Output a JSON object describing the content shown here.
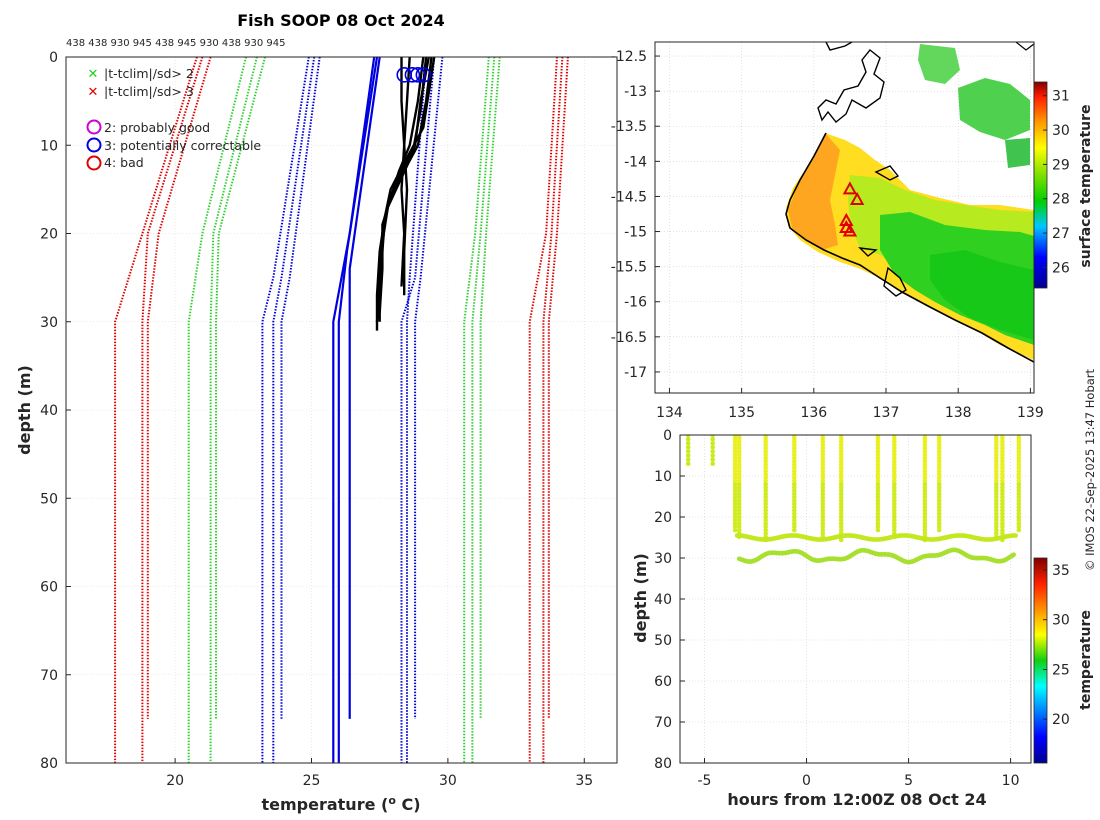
{
  "chart_data": [
    {
      "type": "line",
      "panel": "profiles",
      "title": "Fish SOOP 08 Oct 2024",
      "xlabel": "temperature (",
      "xlabel_sup": "o",
      "xlabel_end": " C)",
      "ylabel": "depth (m)",
      "xlim": [
        16,
        36.2
      ],
      "ylim": [
        80,
        0
      ],
      "x_ticks": [
        20,
        25,
        30,
        35
      ],
      "y_ticks": [
        0,
        10,
        20,
        30,
        40,
        50,
        60,
        70,
        80
      ],
      "top_tick_labels": "438 438 930 945 438 945 930 438 930 945",
      "legend": [
        {
          "marker": "x",
          "color": "#1fd01f",
          "label": "|t-tclim|/sd> 2"
        },
        {
          "marker": "x",
          "color": "#e00000",
          "label": "|t-tclim|/sd> 3"
        },
        {
          "marker": "o",
          "color": "#d000d0",
          "label": "2: probably good"
        },
        {
          "marker": "o",
          "color": "#0000e0",
          "label": "3: potentially correctable"
        },
        {
          "marker": "o",
          "color": "#e00000",
          "label": "4: bad"
        }
      ],
      "climatology_bands": [
        {
          "name": "-3sd",
          "color": "#e00000",
          "curves": [
            [
              [
                20.8,
                0
              ],
              [
                18.8,
                20
              ],
              [
                17.8,
                30
              ],
              [
                17.8,
                80
              ]
            ],
            [
              [
                21.0,
                0
              ],
              [
                19.0,
                20
              ],
              [
                18.8,
                30
              ],
              [
                18.8,
                80
              ]
            ],
            [
              [
                21.3,
                0
              ],
              [
                19.4,
                20
              ],
              [
                19.0,
                30
              ],
              [
                19.0,
                75
              ]
            ]
          ]
        },
        {
          "name": "-2sd",
          "color": "#30d030",
          "curves": [
            [
              [
                22.6,
                0
              ],
              [
                21.0,
                20
              ],
              [
                20.5,
                30
              ],
              [
                20.5,
                80
              ]
            ],
            [
              [
                23.0,
                0
              ],
              [
                21.4,
                20
              ],
              [
                21.3,
                30
              ],
              [
                21.3,
                80
              ]
            ],
            [
              [
                23.3,
                0
              ],
              [
                21.6,
                20
              ],
              [
                21.5,
                30
              ],
              [
                21.5,
                75
              ]
            ]
          ]
        },
        {
          "name": "mean",
          "color": "#0000e0",
          "curves": [
            [
              [
                24.9,
                0
              ],
              [
                23.6,
                25
              ],
              [
                23.2,
                30
              ],
              [
                23.2,
                80
              ]
            ],
            [
              [
                25.1,
                0
              ],
              [
                23.9,
                25
              ],
              [
                23.6,
                30
              ],
              [
                23.6,
                80
              ]
            ],
            [
              [
                25.3,
                0
              ],
              [
                24.2,
                25
              ],
              [
                23.9,
                30
              ],
              [
                23.9,
                75
              ]
            ]
          ]
        },
        {
          "name": "mean-right",
          "color": "#0000e0",
          "curves": [
            [
              [
                29.5,
                0
              ],
              [
                28.8,
                25
              ],
              [
                28.3,
                30
              ],
              [
                28.3,
                80
              ]
            ],
            [
              [
                29.2,
                0
              ],
              [
                28.6,
                25
              ],
              [
                28.5,
                30
              ],
              [
                28.5,
                80
              ]
            ],
            [
              [
                29.8,
                0
              ],
              [
                29.0,
                25
              ],
              [
                28.8,
                30
              ],
              [
                28.8,
                75
              ]
            ]
          ]
        },
        {
          "name": "+2sd",
          "color": "#30d030",
          "curves": [
            [
              [
                31.5,
                0
              ],
              [
                31.0,
                20
              ],
              [
                30.6,
                30
              ],
              [
                30.6,
                80
              ]
            ],
            [
              [
                31.7,
                0
              ],
              [
                31.2,
                20
              ],
              [
                30.9,
                30
              ],
              [
                30.9,
                80
              ]
            ],
            [
              [
                31.9,
                0
              ],
              [
                31.4,
                20
              ],
              [
                31.2,
                30
              ],
              [
                31.2,
                75
              ]
            ]
          ]
        },
        {
          "name": "+3sd",
          "color": "#e00000",
          "curves": [
            [
              [
                34.0,
                0
              ],
              [
                33.6,
                20
              ],
              [
                33.0,
                30
              ],
              [
                33.0,
                80
              ]
            ],
            [
              [
                34.2,
                0
              ],
              [
                33.8,
                20
              ],
              [
                33.5,
                30
              ],
              [
                33.5,
                80
              ]
            ],
            [
              [
                34.4,
                0
              ],
              [
                34.0,
                20
              ],
              [
                33.7,
                30
              ],
              [
                33.7,
                75
              ]
            ]
          ]
        }
      ],
      "model_profiles": {
        "color": "#0000e0",
        "curves": [
          [
            [
              27.3,
              0
            ],
            [
              26.4,
              20
            ],
            [
              25.8,
              30
            ],
            [
              25.8,
              80
            ]
          ],
          [
            [
              27.4,
              0
            ],
            [
              26.3,
              22
            ],
            [
              26.0,
              30
            ],
            [
              26.0,
              80
            ]
          ],
          [
            [
              27.5,
              0
            ],
            [
              26.4,
              24
            ],
            [
              26.4,
              30
            ],
            [
              26.4,
              75
            ]
          ]
        ]
      },
      "observed_profiles": {
        "color": "#000000",
        "curves": [
          [
            [
              28.3,
              0
            ],
            [
              28.3,
              5
            ],
            [
              28.4,
              10
            ],
            [
              28.3,
              15
            ],
            [
              28.4,
              20
            ],
            [
              28.3,
              26
            ]
          ],
          [
            [
              28.6,
              0
            ],
            [
              28.5,
              5
            ],
            [
              28.4,
              10
            ],
            [
              28.5,
              15
            ],
            [
              28.4,
              22
            ],
            [
              28.4,
              27
            ]
          ],
          [
            [
              29.4,
              0
            ],
            [
              29.2,
              5
            ],
            [
              28.9,
              10
            ],
            [
              28.2,
              14
            ],
            [
              27.8,
              17
            ],
            [
              27.6,
              20
            ],
            [
              27.5,
              25
            ],
            [
              27.5,
              30
            ]
          ],
          [
            [
              29.3,
              0
            ],
            [
              29.0,
              5
            ],
            [
              28.8,
              10
            ],
            [
              28.0,
              15
            ],
            [
              27.7,
              18
            ],
            [
              27.5,
              22
            ],
            [
              27.4,
              27
            ],
            [
              27.4,
              31
            ]
          ],
          [
            [
              29.1,
              0
            ],
            [
              28.9,
              5
            ],
            [
              28.6,
              10
            ],
            [
              28.2,
              13
            ],
            [
              27.9,
              16
            ],
            [
              27.6,
              19
            ],
            [
              27.6,
              24
            ],
            [
              27.5,
              29
            ]
          ],
          [
            [
              29.5,
              0
            ],
            [
              29.3,
              4
            ],
            [
              29.1,
              8
            ],
            [
              28.4,
              12
            ],
            [
              27.9,
              15
            ],
            [
              27.7,
              18
            ],
            [
              27.6,
              22
            ],
            [
              27.5,
              28
            ]
          ],
          [
            [
              29.2,
              0
            ],
            [
              29.0,
              6
            ],
            [
              28.7,
              11
            ],
            [
              28.1,
              15
            ],
            [
              27.8,
              17
            ],
            [
              27.6,
              21
            ],
            [
              27.5,
              26
            ],
            [
              27.4,
              30
            ]
          ]
        ]
      },
      "qc_flags": [
        {
          "temp": 28.4,
          "depth": 1,
          "flag": 3
        },
        {
          "temp": 28.7,
          "depth": 1,
          "flag": 3
        },
        {
          "temp": 28.9,
          "depth": 1,
          "flag": 3
        },
        {
          "temp": 29.1,
          "depth": 1,
          "flag": 3
        }
      ]
    },
    {
      "type": "heatmap",
      "panel": "map",
      "colorbar_label": "surface temperature",
      "xlim": [
        133.8,
        139.05
      ],
      "ylim": [
        -17.3,
        -12.3
      ],
      "x_ticks": [
        134,
        135,
        136,
        137,
        138,
        139
      ],
      "y_ticks": [
        -12.5,
        -13,
        -13.5,
        -14,
        -14.5,
        -15,
        -15.5,
        -16,
        -16.5,
        -17
      ],
      "colorbar_range": [
        25.4,
        31.4
      ],
      "colorbar_ticks": [
        26,
        27,
        28,
        29,
        30,
        31
      ],
      "station_markers": [
        [
          136.5,
          -14.4
        ],
        [
          136.6,
          -14.55
        ],
        [
          136.45,
          -14.85
        ],
        [
          136.45,
          -14.95
        ],
        [
          136.5,
          -15.0
        ]
      ]
    },
    {
      "type": "scatter",
      "panel": "section",
      "xlabel": "hours from 12:00Z 08 Oct 24",
      "ylabel": "depth (m)",
      "colorbar_label": "temperature",
      "xlim": [
        -6.2,
        11
      ],
      "ylim": [
        80,
        0
      ],
      "x_ticks": [
        -5,
        0,
        5,
        10
      ],
      "y_ticks": [
        0,
        10,
        20,
        30,
        40,
        50,
        60,
        70,
        80
      ],
      "colorbar_range": [
        15.6,
        36.2
      ],
      "colorbar_ticks": [
        20,
        25,
        30,
        35
      ],
      "casts_hours": [
        -5.8,
        -4.6,
        -3.5,
        -3.3,
        -2.0,
        -0.6,
        0.8,
        1.7,
        3.5,
        4.3,
        5.8,
        6.5,
        9.3,
        9.6,
        10.4
      ]
    }
  ],
  "credit": "© IMOS 22-Sep-2025 13:47 Hobart"
}
